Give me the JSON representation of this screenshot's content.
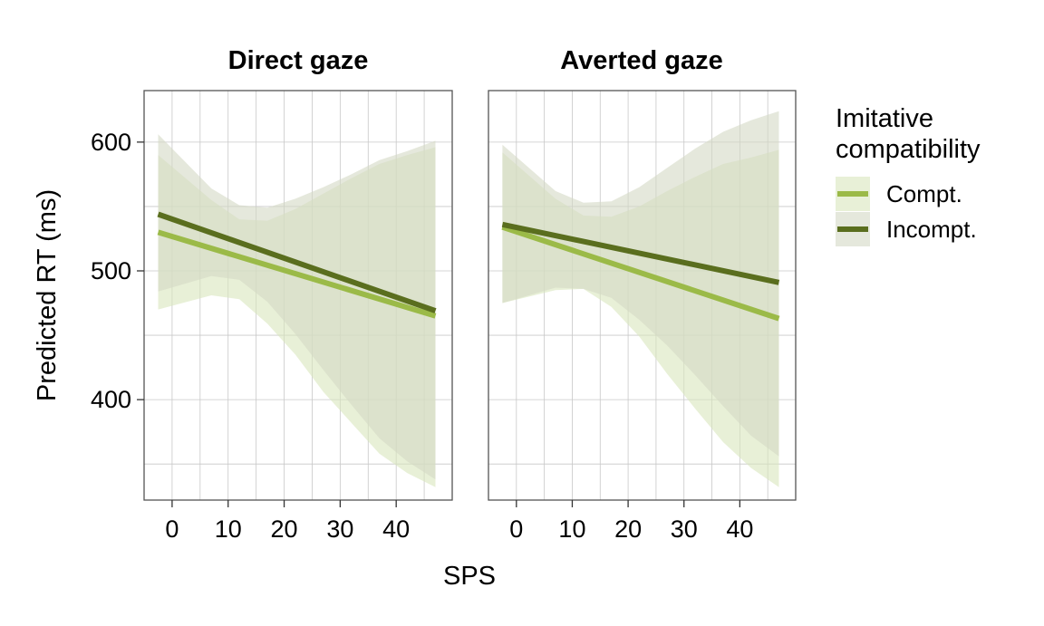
{
  "chart_data": {
    "type": "line",
    "xlabel": "SPS",
    "ylabel": "Predicted RT (ms)",
    "xlim": [
      -5,
      50
    ],
    "ylim": [
      322,
      640
    ],
    "x_ticks": [
      0,
      10,
      20,
      30,
      40
    ],
    "y_ticks": [
      400,
      500,
      600
    ],
    "grid": true,
    "legend": {
      "title_line1": "Imitative",
      "title_line2": "compatibility",
      "position": "right",
      "entries": [
        {
          "label": "Compt.",
          "color": "#9bba48",
          "band_color": "#d9e6bd"
        },
        {
          "label": "Incompt.",
          "color": "#5a6e1e",
          "band_color": "#d4d9c4"
        }
      ]
    },
    "panels": [
      {
        "title": "Direct gaze",
        "series": [
          {
            "name": "Compt.",
            "x": [
              -2.5,
              47
            ],
            "y": [
              530,
              465
            ],
            "ci_x": [
              -2.5,
              7,
              12,
              17,
              22,
              27,
              32,
              37,
              42,
              47
            ],
            "ci_upper": [
              590,
              555,
              540,
              539,
              548,
              560,
              572,
              583,
              590,
              596
            ],
            "ci_lower": [
              470,
              481,
              478,
              459,
              435,
              406,
              382,
              358,
              343,
              332
            ]
          },
          {
            "name": "Incompt.",
            "x": [
              -2.5,
              47
            ],
            "y": [
              544,
              469
            ],
            "ci_x": [
              -2.5,
              7,
              12,
              17,
              22,
              27,
              32,
              37,
              42,
              47
            ],
            "ci_upper": [
              606,
              564,
              551,
              549,
              556,
              565,
              575,
              586,
              593,
              601
            ],
            "ci_lower": [
              484,
              496,
              493,
              476,
              451,
              423,
              396,
              370,
              352,
              338
            ]
          }
        ]
      },
      {
        "title": "Averted gaze",
        "series": [
          {
            "name": "Compt.",
            "x": [
              -2.5,
              47
            ],
            "y": [
              534,
              463
            ],
            "ci_x": [
              -2.5,
              7,
              12,
              17,
              22,
              27,
              32,
              37,
              42,
              47
            ],
            "ci_upper": [
              592,
              556,
              543,
              542,
              550,
              562,
              573,
              583,
              588,
              594
            ],
            "ci_lower": [
              475,
              485,
              486,
              472,
              449,
              420,
              393,
              367,
              347,
              332
            ]
          },
          {
            "name": "Incompt.",
            "x": [
              -2.5,
              47
            ],
            "y": [
              536,
              491
            ],
            "ci_x": [
              -2.5,
              7,
              12,
              17,
              22,
              27,
              32,
              37,
              42,
              47
            ],
            "ci_upper": [
              598,
              562,
              553,
              554,
              565,
              580,
              595,
              608,
              617,
              624
            ],
            "ci_lower": [
              475,
              487,
              486,
              479,
              462,
              442,
              419,
              395,
              372,
              356
            ]
          }
        ]
      }
    ]
  }
}
